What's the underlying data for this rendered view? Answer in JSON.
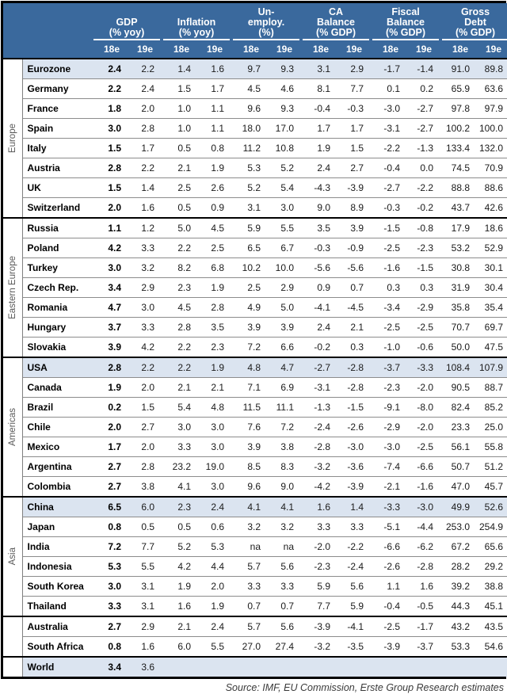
{
  "header": {
    "columns": [
      {
        "title_lines": [
          "GDP"
        ],
        "unit": "(% yoy)"
      },
      {
        "title_lines": [
          "Inflation"
        ],
        "unit": "(% yoy)"
      },
      {
        "title_lines": [
          "Un-",
          "employ."
        ],
        "unit": "(%)"
      },
      {
        "title_lines": [
          "CA",
          "Balance"
        ],
        "unit": "(% GDP)"
      },
      {
        "title_lines": [
          "Fiscal",
          "Balance"
        ],
        "unit": "(% GDP)"
      },
      {
        "title_lines": [
          "Gross",
          "Debt"
        ],
        "unit": "(% GDP)"
      }
    ],
    "subheaders": [
      "18e",
      "19e"
    ]
  },
  "colors": {
    "header_bg": "#3A699D",
    "header_text": "#ffffff",
    "highlight_row": "#DBE4F0",
    "grid_line": "#8c8c8c",
    "group_border": "#000000",
    "region_label_text": "#595959"
  },
  "table": {
    "groups": [
      {
        "label": "Europe",
        "rows": [
          {
            "country": "Eurozone",
            "highlight": true,
            "values": [
              "2.4",
              "2.2",
              "1.4",
              "1.6",
              "9.7",
              "9.3",
              "3.1",
              "2.9",
              "-1.7",
              "-1.4",
              "91.0",
              "89.8"
            ]
          },
          {
            "country": "Germany",
            "highlight": false,
            "values": [
              "2.2",
              "2.4",
              "1.5",
              "1.7",
              "4.5",
              "4.6",
              "8.1",
              "7.7",
              "0.1",
              "0.2",
              "65.9",
              "63.6"
            ]
          },
          {
            "country": "France",
            "highlight": false,
            "values": [
              "1.8",
              "2.0",
              "1.0",
              "1.1",
              "9.6",
              "9.3",
              "-0.4",
              "-0.3",
              "-3.0",
              "-2.7",
              "97.8",
              "97.9"
            ]
          },
          {
            "country": "Spain",
            "highlight": false,
            "values": [
              "3.0",
              "2.8",
              "1.0",
              "1.1",
              "18.0",
              "17.0",
              "1.7",
              "1.7",
              "-3.1",
              "-2.7",
              "100.2",
              "100.0"
            ]
          },
          {
            "country": "Italy",
            "highlight": false,
            "values": [
              "1.5",
              "1.7",
              "0.5",
              "0.8",
              "11.2",
              "10.8",
              "1.9",
              "1.5",
              "-2.2",
              "-1.3",
              "133.4",
              "132.0"
            ]
          },
          {
            "country": "Austria",
            "highlight": false,
            "values": [
              "2.8",
              "2.2",
              "2.1",
              "1.9",
              "5.3",
              "5.2",
              "2.4",
              "2.7",
              "-0.4",
              "0.0",
              "74.5",
              "70.9"
            ]
          },
          {
            "country": "UK",
            "highlight": false,
            "values": [
              "1.5",
              "1.4",
              "2.5",
              "2.6",
              "5.2",
              "5.4",
              "-4.3",
              "-3.9",
              "-2.7",
              "-2.2",
              "88.8",
              "88.6"
            ]
          },
          {
            "country": "Switzerland",
            "highlight": false,
            "values": [
              "2.0",
              "1.6",
              "0.5",
              "0.9",
              "3.1",
              "3.0",
              "9.0",
              "8.9",
              "-0.3",
              "-0.2",
              "43.7",
              "42.6"
            ]
          }
        ]
      },
      {
        "label": "Eastern Europe",
        "rows": [
          {
            "country": "Russia",
            "highlight": false,
            "values": [
              "1.1",
              "1.2",
              "5.0",
              "4.5",
              "5.9",
              "5.5",
              "3.5",
              "3.9",
              "-1.5",
              "-0.8",
              "17.9",
              "18.6"
            ]
          },
          {
            "country": "Poland",
            "highlight": false,
            "values": [
              "4.2",
              "3.3",
              "2.2",
              "2.5",
              "6.5",
              "6.7",
              "-0.3",
              "-0.9",
              "-2.5",
              "-2.3",
              "53.2",
              "52.9"
            ]
          },
          {
            "country": "Turkey",
            "highlight": false,
            "values": [
              "3.0",
              "3.2",
              "8.2",
              "6.8",
              "10.2",
              "10.0",
              "-5.6",
              "-5.6",
              "-1.6",
              "-1.5",
              "30.8",
              "30.1"
            ]
          },
          {
            "country": "Czech Rep.",
            "highlight": false,
            "values": [
              "3.4",
              "2.9",
              "2.3",
              "1.9",
              "2.5",
              "2.9",
              "0.9",
              "0.7",
              "0.3",
              "0.3",
              "31.9",
              "30.4"
            ]
          },
          {
            "country": "Romania",
            "highlight": false,
            "values": [
              "4.7",
              "3.0",
              "4.5",
              "2.8",
              "4.9",
              "5.0",
              "-4.1",
              "-4.5",
              "-3.4",
              "-2.9",
              "35.8",
              "35.4"
            ]
          },
          {
            "country": "Hungary",
            "highlight": false,
            "values": [
              "3.7",
              "3.3",
              "2.8",
              "3.5",
              "3.9",
              "3.9",
              "2.4",
              "2.1",
              "-2.5",
              "-2.5",
              "70.7",
              "69.7"
            ]
          },
          {
            "country": "Slovakia",
            "highlight": false,
            "values": [
              "3.9",
              "4.2",
              "2.2",
              "2.3",
              "7.2",
              "6.6",
              "-0.2",
              "0.3",
              "-1.0",
              "-0.6",
              "50.0",
              "47.5"
            ]
          }
        ]
      },
      {
        "label": "Americas",
        "rows": [
          {
            "country": "USA",
            "highlight": true,
            "values": [
              "2.8",
              "2.2",
              "2.2",
              "1.9",
              "4.8",
              "4.7",
              "-2.7",
              "-2.8",
              "-3.7",
              "-3.3",
              "108.4",
              "107.9"
            ]
          },
          {
            "country": "Canada",
            "highlight": false,
            "values": [
              "1.9",
              "2.0",
              "2.1",
              "2.1",
              "7.1",
              "6.9",
              "-3.1",
              "-2.8",
              "-2.3",
              "-2.0",
              "90.5",
              "88.7"
            ]
          },
          {
            "country": "Brazil",
            "highlight": false,
            "values": [
              "0.2",
              "1.5",
              "5.4",
              "4.8",
              "11.5",
              "11.1",
              "-1.3",
              "-1.5",
              "-9.1",
              "-8.0",
              "82.4",
              "85.2"
            ]
          },
          {
            "country": "Chile",
            "highlight": false,
            "values": [
              "2.0",
              "2.7",
              "3.0",
              "3.0",
              "7.6",
              "7.2",
              "-2.4",
              "-2.6",
              "-2.9",
              "-2.0",
              "23.3",
              "25.0"
            ]
          },
          {
            "country": "Mexico",
            "highlight": false,
            "values": [
              "1.7",
              "2.0",
              "3.3",
              "3.0",
              "3.9",
              "3.8",
              "-2.8",
              "-3.0",
              "-3.0",
              "-2.5",
              "56.1",
              "55.8"
            ]
          },
          {
            "country": "Argentina",
            "highlight": false,
            "values": [
              "2.7",
              "2.8",
              "23.2",
              "19.0",
              "8.5",
              "8.3",
              "-3.2",
              "-3.6",
              "-7.4",
              "-6.6",
              "50.7",
              "51.2"
            ]
          },
          {
            "country": "Colombia",
            "highlight": false,
            "values": [
              "2.7",
              "3.8",
              "4.1",
              "3.0",
              "9.6",
              "9.0",
              "-4.2",
              "-3.9",
              "-2.1",
              "-1.6",
              "47.0",
              "45.7"
            ]
          }
        ]
      },
      {
        "label": "Asia",
        "rows": [
          {
            "country": "China",
            "highlight": true,
            "values": [
              "6.5",
              "6.0",
              "2.3",
              "2.4",
              "4.1",
              "4.1",
              "1.6",
              "1.4",
              "-3.3",
              "-3.0",
              "49.9",
              "52.6"
            ]
          },
          {
            "country": "Japan",
            "highlight": false,
            "values": [
              "0.8",
              "0.5",
              "0.5",
              "0.6",
              "3.2",
              "3.2",
              "3.3",
              "3.3",
              "-5.1",
              "-4.4",
              "253.0",
              "254.9"
            ]
          },
          {
            "country": "India",
            "highlight": false,
            "values": [
              "7.2",
              "7.7",
              "5.2",
              "5.3",
              "na",
              "na",
              "-2.0",
              "-2.2",
              "-6.6",
              "-6.2",
              "67.2",
              "65.6"
            ]
          },
          {
            "country": "Indonesia",
            "highlight": false,
            "values": [
              "5.3",
              "5.5",
              "4.2",
              "4.4",
              "5.7",
              "5.6",
              "-2.3",
              "-2.4",
              "-2.6",
              "-2.8",
              "28.2",
              "29.2"
            ]
          },
          {
            "country": "South Korea",
            "highlight": false,
            "values": [
              "3.0",
              "3.1",
              "1.9",
              "2.0",
              "3.3",
              "3.3",
              "5.9",
              "5.6",
              "1.1",
              "1.6",
              "39.2",
              "38.8"
            ]
          },
          {
            "country": "Thailand",
            "highlight": false,
            "values": [
              "3.3",
              "3.1",
              "1.6",
              "1.9",
              "0.7",
              "0.7",
              "7.7",
              "5.9",
              "-0.4",
              "-0.5",
              "44.3",
              "45.1"
            ]
          }
        ]
      },
      {
        "label": "",
        "rows": [
          {
            "country": "Australia",
            "highlight": false,
            "values": [
              "2.7",
              "2.9",
              "2.1",
              "2.4",
              "5.7",
              "5.6",
              "-3.9",
              "-4.1",
              "-2.5",
              "-1.7",
              "43.2",
              "43.5"
            ]
          },
          {
            "country": "South Africa",
            "highlight": false,
            "values": [
              "0.8",
              "1.6",
              "6.0",
              "5.5",
              "27.0",
              "27.4",
              "-3.2",
              "-3.5",
              "-3.9",
              "-3.7",
              "53.3",
              "54.6"
            ]
          }
        ]
      },
      {
        "label": "",
        "rows": [
          {
            "country": "World",
            "highlight": true,
            "values": [
              "3.4",
              "3.6",
              "",
              "",
              "",
              "",
              "",
              "",
              "",
              "",
              "",
              ""
            ]
          }
        ]
      }
    ]
  },
  "footer": {
    "source": "Source: IMF, EU Commission, Erste Group Research estimates"
  }
}
